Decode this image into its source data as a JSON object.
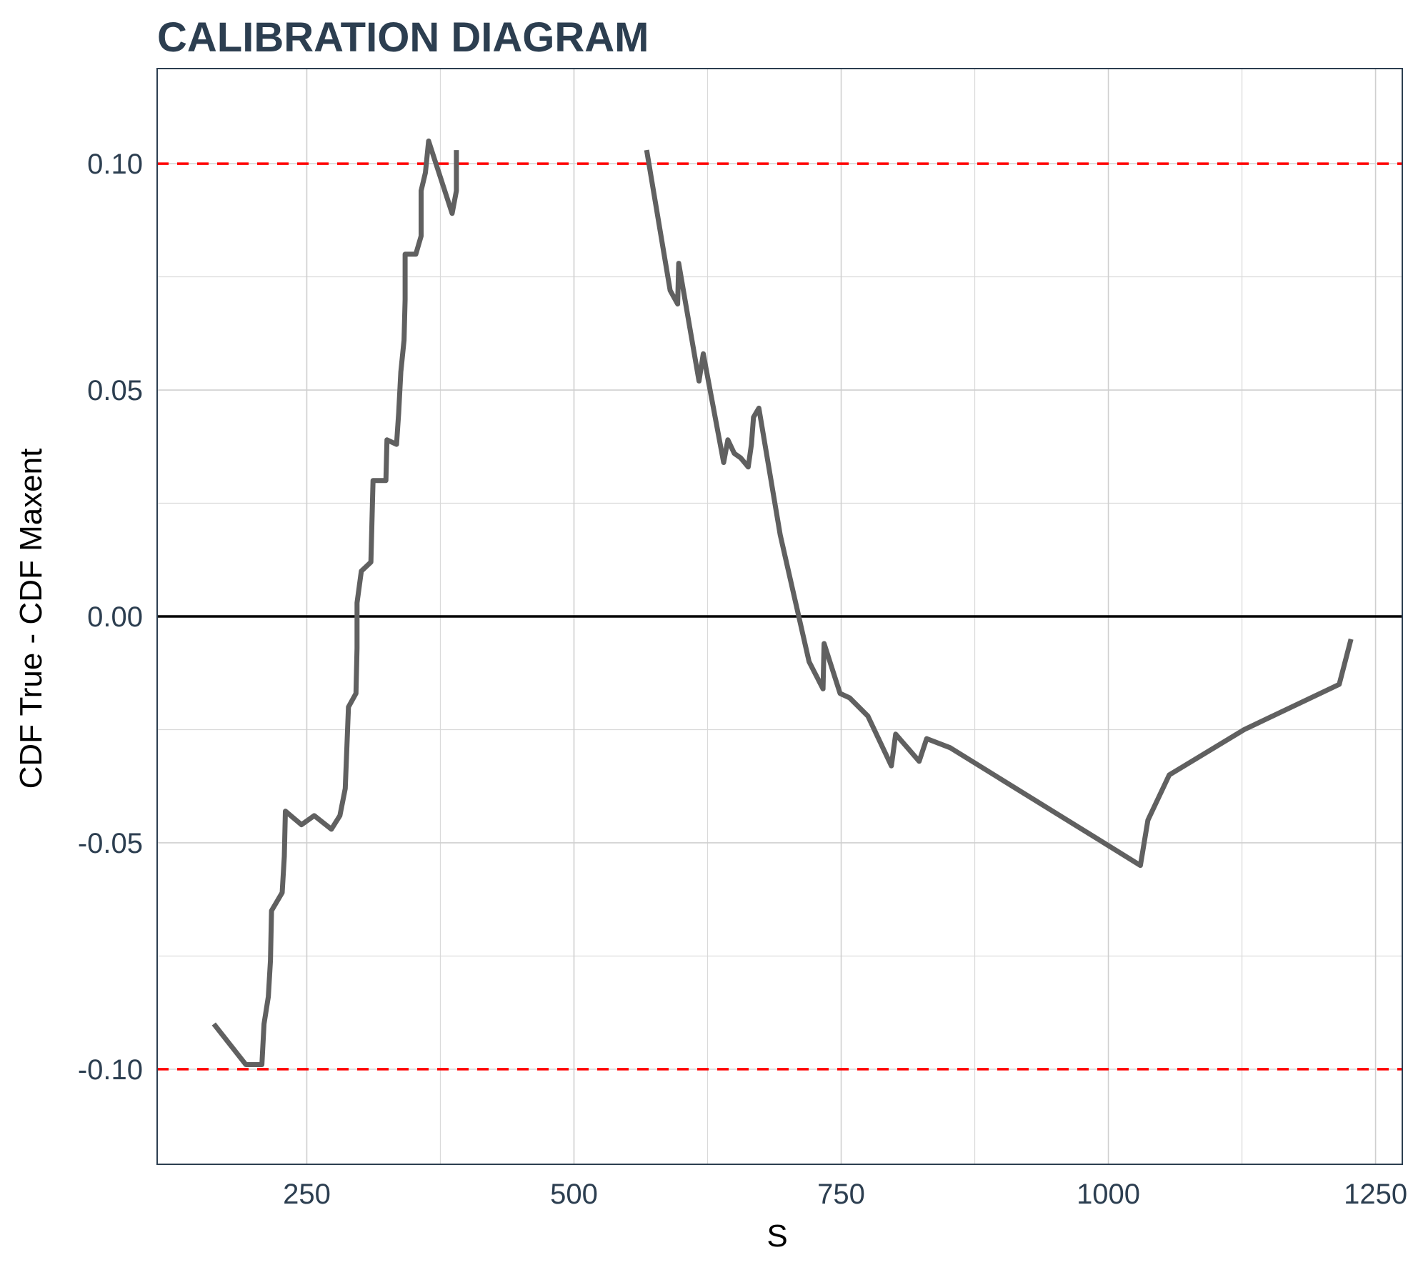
{
  "chart_data": {
    "type": "line",
    "title": "CALIBRATION DIAGRAM",
    "xlabel": "S",
    "ylabel": "CDF True - CDF Maxent",
    "xlim": [
      110,
      1275
    ],
    "ylim": [
      -0.121,
      0.121
    ],
    "x_ticks": [
      250,
      500,
      750,
      1000,
      1250
    ],
    "x_tick_labels": [
      "250",
      "500",
      "750",
      "1000",
      "1250"
    ],
    "y_ticks": [
      -0.1,
      -0.05,
      0.0,
      0.05,
      0.1
    ],
    "y_tick_labels": [
      "-0.10",
      "-0.05",
      "0.00",
      "0.05",
      "0.10"
    ],
    "grid": true,
    "legend": "none",
    "reference_lines": [
      {
        "y": 0.1,
        "style": "dashed",
        "color": "#ff0000"
      },
      {
        "y": -0.1,
        "style": "dashed",
        "color": "#ff0000"
      },
      {
        "y": 0.0,
        "style": "solid",
        "color": "#000000"
      }
    ],
    "series": [
      {
        "color": "#606060",
        "segments": [
          [
            [
              163,
              -0.09
            ],
            [
              193,
              -0.099
            ],
            [
              208,
              -0.099
            ],
            [
              210,
              -0.09
            ],
            [
              214,
              -0.084
            ],
            [
              216,
              -0.076
            ],
            [
              217,
              -0.065
            ],
            [
              227,
              -0.061
            ],
            [
              229,
              -0.053
            ],
            [
              230,
              -0.043
            ],
            [
              245,
              -0.046
            ],
            [
              257,
              -0.044
            ],
            [
              273,
              -0.047
            ],
            [
              281,
              -0.044
            ],
            [
              286,
              -0.038
            ],
            [
              289,
              -0.02
            ],
            [
              296,
              -0.017
            ],
            [
              297,
              -0.007
            ],
            [
              297,
              0.003
            ],
            [
              301,
              0.01
            ],
            [
              310,
              0.012
            ],
            [
              311,
              0.021
            ],
            [
              312,
              0.03
            ],
            [
              324,
              0.03
            ],
            [
              325,
              0.039
            ],
            [
              334,
              0.038
            ],
            [
              336,
              0.045
            ],
            [
              338,
              0.054
            ],
            [
              341,
              0.061
            ],
            [
              342,
              0.07
            ],
            [
              342,
              0.08
            ],
            [
              352,
              0.08
            ],
            [
              357,
              0.084
            ],
            [
              357,
              0.094
            ],
            [
              361,
              0.098
            ],
            [
              364,
              0.105
            ],
            [
              386,
              0.089
            ],
            [
              390,
              0.094
            ],
            [
              390,
              0.103
            ]
          ],
          [
            [
              568,
              0.103
            ],
            [
              590,
              0.072
            ],
            [
              597,
              0.069
            ],
            [
              598,
              0.078
            ],
            [
              617,
              0.052
            ],
            [
              621,
              0.058
            ],
            [
              640,
              0.034
            ],
            [
              644,
              0.039
            ],
            [
              650,
              0.036
            ],
            [
              656,
              0.035
            ],
            [
              663,
              0.033
            ],
            [
              666,
              0.038
            ],
            [
              668,
              0.044
            ],
            [
              673,
              0.046
            ],
            [
              693,
              0.018
            ],
            [
              720,
              -0.01
            ],
            [
              733,
              -0.016
            ],
            [
              734,
              -0.006
            ],
            [
              749,
              -0.017
            ],
            [
              758,
              -0.018
            ],
            [
              775,
              -0.022
            ],
            [
              797,
              -0.033
            ],
            [
              801,
              -0.026
            ],
            [
              823,
              -0.032
            ],
            [
              830,
              -0.027
            ],
            [
              852,
              -0.029
            ],
            [
              1030,
              -0.055
            ],
            [
              1037,
              -0.045
            ],
            [
              1057,
              -0.035
            ],
            [
              1127,
              -0.025
            ],
            [
              1216,
              -0.015
            ],
            [
              1227,
              -0.005
            ]
          ]
        ]
      }
    ]
  }
}
